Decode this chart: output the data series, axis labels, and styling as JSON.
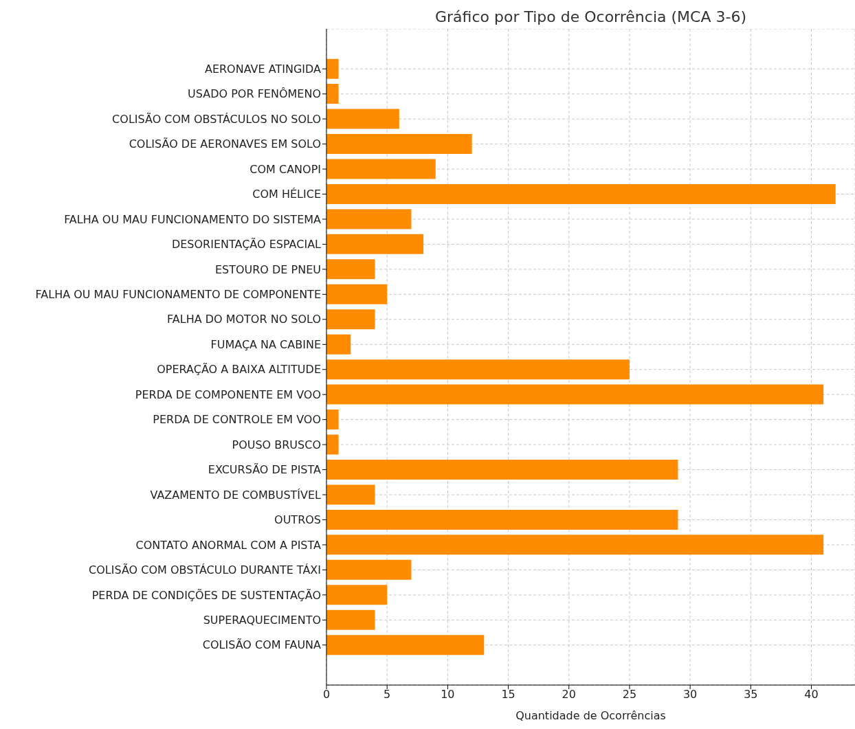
{
  "chart_data": {
    "type": "bar",
    "orientation": "horizontal",
    "title": "Gráfico por Tipo de Ocorrência (MCA 3-6)",
    "xlabel": "Quantidade de Ocorrências",
    "categories": [
      "AERONAVE ATINGIDA",
      "USADO POR FENÔMENO",
      "COLISÃO COM OBSTÁCULOS NO SOLO",
      "COLISÃO DE AERONAVES EM SOLO",
      "COM CANOPI",
      "COM HÉLICE",
      "FALHA OU MAU FUNCIONAMENTO DO SISTEMA",
      "DESORIENTAÇÃO ESPACIAL",
      "ESTOURO DE PNEU",
      "FALHA OU MAU FUNCIONAMENTO DE COMPONENTE",
      "FALHA DO MOTOR NO SOLO",
      "FUMAÇA NA CABINE",
      "OPERAÇÃO A BAIXA ALTITUDE",
      "PERDA DE COMPONENTE EM VOO",
      "PERDA DE CONTROLE EM VOO",
      "POUSO BRUSCO",
      "EXCURSÃO DE PISTA",
      "VAZAMENTO DE COMBUSTÍVEL",
      "OUTROS",
      "CONTATO ANORMAL COM A PISTA",
      "COLISÃO COM OBSTÁCULO DURANTE TÁXI",
      "PERDA DE CONDIÇÕES DE SUSTENTAÇÃO",
      "SUPERAQUECIMENTO",
      "COLISÃO COM FAUNA"
    ],
    "values": [
      1,
      1,
      6,
      12,
      9,
      42,
      7,
      8,
      4,
      5,
      4,
      2,
      25,
      41,
      1,
      1,
      29,
      4,
      29,
      41,
      7,
      5,
      4,
      13
    ],
    "color": "#ff8c00",
    "xlim": [
      0,
      43.6
    ],
    "xticks": [
      0,
      5,
      10,
      15,
      20,
      25,
      30,
      35,
      40
    ],
    "grid": true
  }
}
